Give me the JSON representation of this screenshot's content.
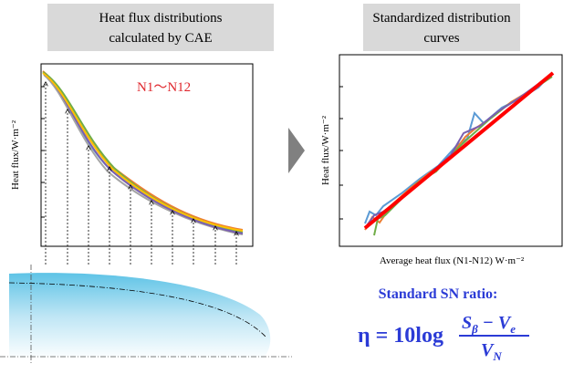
{
  "left_panel": {
    "title_lines": [
      "Heat flux distributions",
      "calculated by CAE"
    ],
    "series_label": "N1～N12",
    "y_label": "Heat flux/W·m⁻²"
  },
  "right_panel": {
    "title_lines": [
      "Standardized distribution",
      "curves"
    ],
    "y_label": "Heat flux/W·m⁻²",
    "x_label": "Average heat flux (N1-N12) W·m⁻²"
  },
  "formula": {
    "heading": "Standard SN ratio:",
    "lhs": "η = 10log",
    "num_main": "S",
    "num_sub": "β",
    "num_minus": " − V",
    "num_sub2": "e",
    "den_main": "V",
    "den_sub": "N"
  }
}
